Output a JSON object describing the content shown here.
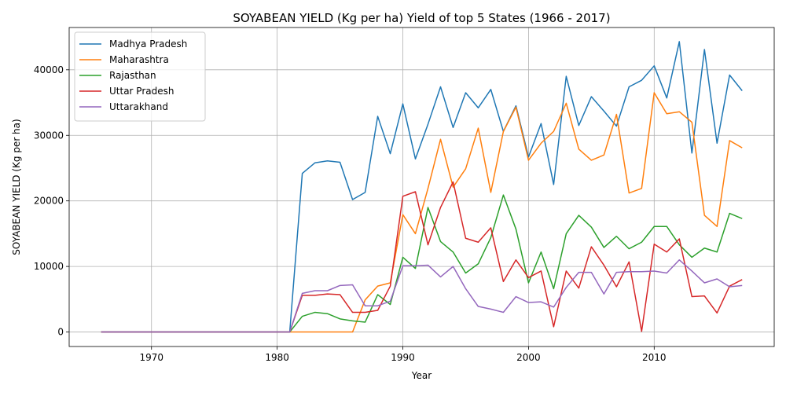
{
  "chart_data": {
    "type": "line",
    "title": "SOYABEAN YIELD (Kg per ha) Yield of top 5 States (1966 - 2017)",
    "xlabel": "Year",
    "ylabel": "SOYABEAN YIELD (Kg per ha)",
    "xlim": [
      1963.45,
      2019.55
    ],
    "ylim": [
      -2210,
      46450
    ],
    "x_ticks": [
      1970,
      1980,
      1990,
      2000,
      2010
    ],
    "y_ticks": [
      0,
      10000,
      20000,
      30000,
      40000
    ],
    "grid": true,
    "legend_position": "upper-left",
    "x": [
      1966,
      1967,
      1968,
      1969,
      1970,
      1971,
      1972,
      1973,
      1974,
      1975,
      1976,
      1977,
      1978,
      1979,
      1980,
      1981,
      1982,
      1983,
      1984,
      1985,
      1986,
      1987,
      1988,
      1989,
      1990,
      1991,
      1992,
      1993,
      1994,
      1995,
      1996,
      1997,
      1998,
      1999,
      2000,
      2001,
      2002,
      2003,
      2004,
      2005,
      2006,
      2007,
      2008,
      2009,
      2010,
      2011,
      2012,
      2013,
      2014,
      2015,
      2016,
      2017
    ],
    "series": [
      {
        "name": "Madhya Pradesh",
        "color": "#1f77b4",
        "values": [
          0,
          0,
          0,
          0,
          0,
          0,
          0,
          0,
          0,
          0,
          0,
          0,
          0,
          0,
          0,
          0,
          24200,
          25800,
          26100,
          25900,
          20200,
          21300,
          32900,
          27200,
          34800,
          26400,
          31700,
          37400,
          31200,
          36500,
          34200,
          37000,
          30600,
          34500,
          26700,
          31800,
          22500,
          39000,
          31500,
          35900,
          33700,
          31400,
          37400,
          38400,
          40600,
          35700,
          44300,
          27300,
          43100,
          28800,
          39200,
          36800
        ]
      },
      {
        "name": "Maharashtra",
        "color": "#ff7f0e",
        "values": [
          0,
          0,
          0,
          0,
          0,
          0,
          0,
          0,
          0,
          0,
          0,
          0,
          0,
          0,
          0,
          0,
          0,
          0,
          0,
          0,
          0,
          4900,
          7000,
          7500,
          17900,
          15000,
          21900,
          29400,
          22100,
          24900,
          31100,
          21300,
          30600,
          34300,
          26200,
          28800,
          30600,
          34900,
          27900,
          26200,
          27000,
          33200,
          21200,
          21900,
          36500,
          33300,
          33600,
          32000,
          17800,
          16100,
          29200,
          28100
        ]
      },
      {
        "name": "Rajasthan",
        "color": "#2ca02c",
        "values": [
          0,
          0,
          0,
          0,
          0,
          0,
          0,
          0,
          0,
          0,
          0,
          0,
          0,
          0,
          0,
          0,
          2400,
          3000,
          2800,
          2000,
          1700,
          1500,
          5700,
          4200,
          11400,
          9700,
          19000,
          13800,
          12200,
          9000,
          10400,
          14400,
          20900,
          15700,
          7500,
          12200,
          6600,
          15000,
          17800,
          16000,
          12900,
          14600,
          12700,
          13700,
          16100,
          16100,
          13300,
          11400,
          12800,
          12200,
          18100,
          17300
        ]
      },
      {
        "name": "Uttar Pradesh",
        "color": "#d62728",
        "values": [
          0,
          0,
          0,
          0,
          0,
          0,
          0,
          0,
          0,
          0,
          0,
          0,
          0,
          0,
          0,
          0,
          5600,
          5600,
          5800,
          5700,
          3000,
          3000,
          3300,
          7000,
          20700,
          21400,
          13300,
          19000,
          22900,
          14300,
          13700,
          15900,
          7700,
          11000,
          8300,
          9300,
          800,
          9300,
          6700,
          13000,
          10200,
          6900,
          10700,
          100,
          13400,
          12200,
          14200,
          5400,
          5500,
          2900,
          7000,
          8000
        ]
      },
      {
        "name": "Uttarakhand",
        "color": "#9467bd",
        "values": [
          0,
          0,
          0,
          0,
          0,
          0,
          0,
          0,
          0,
          0,
          0,
          0,
          0,
          0,
          0,
          0,
          5900,
          6300,
          6300,
          7100,
          7200,
          4000,
          4000,
          4700,
          10100,
          10100,
          10200,
          8400,
          10000,
          6600,
          3900,
          3500,
          3000,
          5400,
          4500,
          4600,
          3800,
          6800,
          9100,
          9100,
          5800,
          9100,
          9200,
          9200,
          9300,
          9000,
          11000,
          9300,
          7500,
          8100,
          6900,
          7100
        ]
      }
    ]
  }
}
